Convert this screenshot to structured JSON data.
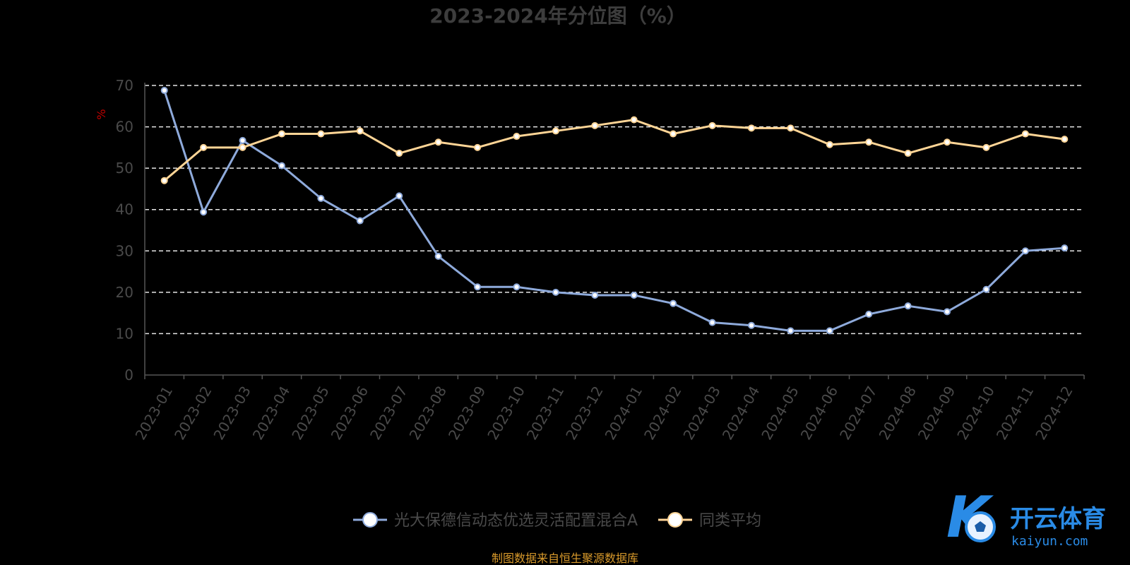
{
  "chart_data": {
    "type": "line",
    "title": "2023-2024年分位图（%）",
    "ylabel": "%",
    "ylim": [
      0,
      70
    ],
    "yticks": [
      0,
      10,
      20,
      30,
      40,
      50,
      60,
      70
    ],
    "grid": true,
    "legend_position": "bottom-center",
    "categories": [
      "2023-01",
      "2023-02",
      "2023-03",
      "2023-04",
      "2023-05",
      "2023-06",
      "2023-07",
      "2023-08",
      "2023-09",
      "2023-10",
      "2023-11",
      "2023-12",
      "2024-01",
      "2024-02",
      "2024-03",
      "2024-04",
      "2024-05",
      "2024-06",
      "2024-07",
      "2024-08",
      "2024-09",
      "2024-10",
      "2024-11",
      "2024-12"
    ],
    "series": [
      {
        "name": "光大保德信动态优选灵活配置混合A",
        "color": "#8eaadb",
        "values": [
          68.8,
          39.4,
          56.7,
          50.6,
          42.7,
          37.3,
          43.3,
          28.7,
          21.3,
          21.3,
          20.0,
          19.3,
          19.3,
          17.3,
          12.7,
          12.0,
          10.7,
          10.7,
          14.7,
          16.7,
          15.3,
          20.7,
          30.0,
          30.7
        ]
      },
      {
        "name": "同类平均",
        "color": "#ffd596",
        "values": [
          47.0,
          55.0,
          55.0,
          58.3,
          58.3,
          59.0,
          53.6,
          56.3,
          55.0,
          57.7,
          59.0,
          60.3,
          61.7,
          58.3,
          60.3,
          59.7,
          59.7,
          55.7,
          56.3,
          53.6,
          56.3,
          55.0,
          58.3,
          57.0
        ]
      }
    ],
    "source_text": "制图数据来自恒生聚源数据库"
  },
  "watermark": {
    "brand": "开云体育",
    "domain": "kaiyun.com",
    "logo_letter": "K",
    "color": "#2a8be6"
  }
}
